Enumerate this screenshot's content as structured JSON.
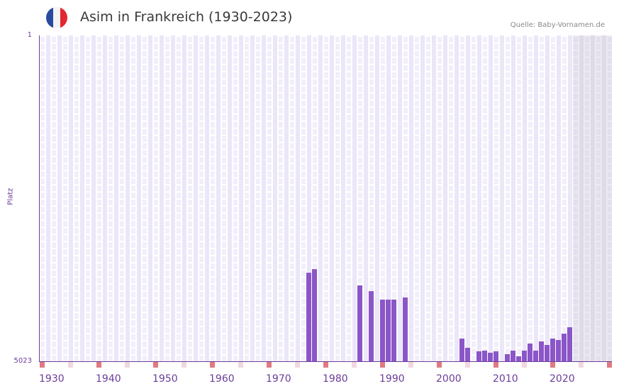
{
  "header": {
    "title": "Asim in Frankreich (1930-2023)",
    "source": "Quelle: Baby-Vornamen.de",
    "flag": {
      "country": "France",
      "colors": [
        "#2a4a9e",
        "#f4f4f4",
        "#e3262f"
      ]
    }
  },
  "colors": {
    "bar": "#8b56c8",
    "axis": "#6a3d9a",
    "decade_marker": "#e07a82",
    "half_decade_marker": "#f2d7e0",
    "future_shade": "#e3e0ea"
  },
  "chart_data": {
    "type": "bar",
    "title": "Asim in Frankreich (1930-2023)",
    "xlabel": "",
    "ylabel": "Platz",
    "y_inverted": true,
    "ylim": [
      5023,
      1
    ],
    "yticks": [
      "1",
      "5023"
    ],
    "xticks": [
      "1930",
      "1940",
      "1950",
      "1960",
      "1970",
      "1980",
      "1990",
      "2000",
      "2010",
      "2020"
    ],
    "xrange": [
      1930,
      2030
    ],
    "grid": true,
    "legend": null,
    "future_shaded_from": 2024,
    "x": [
      1977,
      1978,
      1986,
      1988,
      1990,
      1991,
      1992,
      1994,
      2004,
      2005,
      2007,
      2008,
      2009,
      2010,
      2012,
      2013,
      2014,
      2015,
      2016,
      2017,
      2018,
      2019,
      2020,
      2021,
      2022,
      2023
    ],
    "values": [
      3658,
      3604,
      3855,
      3942,
      4073,
      4073,
      4073,
      4040,
      4674,
      4816,
      4870,
      4859,
      4892,
      4870,
      4914,
      4859,
      4947,
      4859,
      4750,
      4859,
      4717,
      4772,
      4674,
      4695,
      4597,
      4499
    ]
  }
}
